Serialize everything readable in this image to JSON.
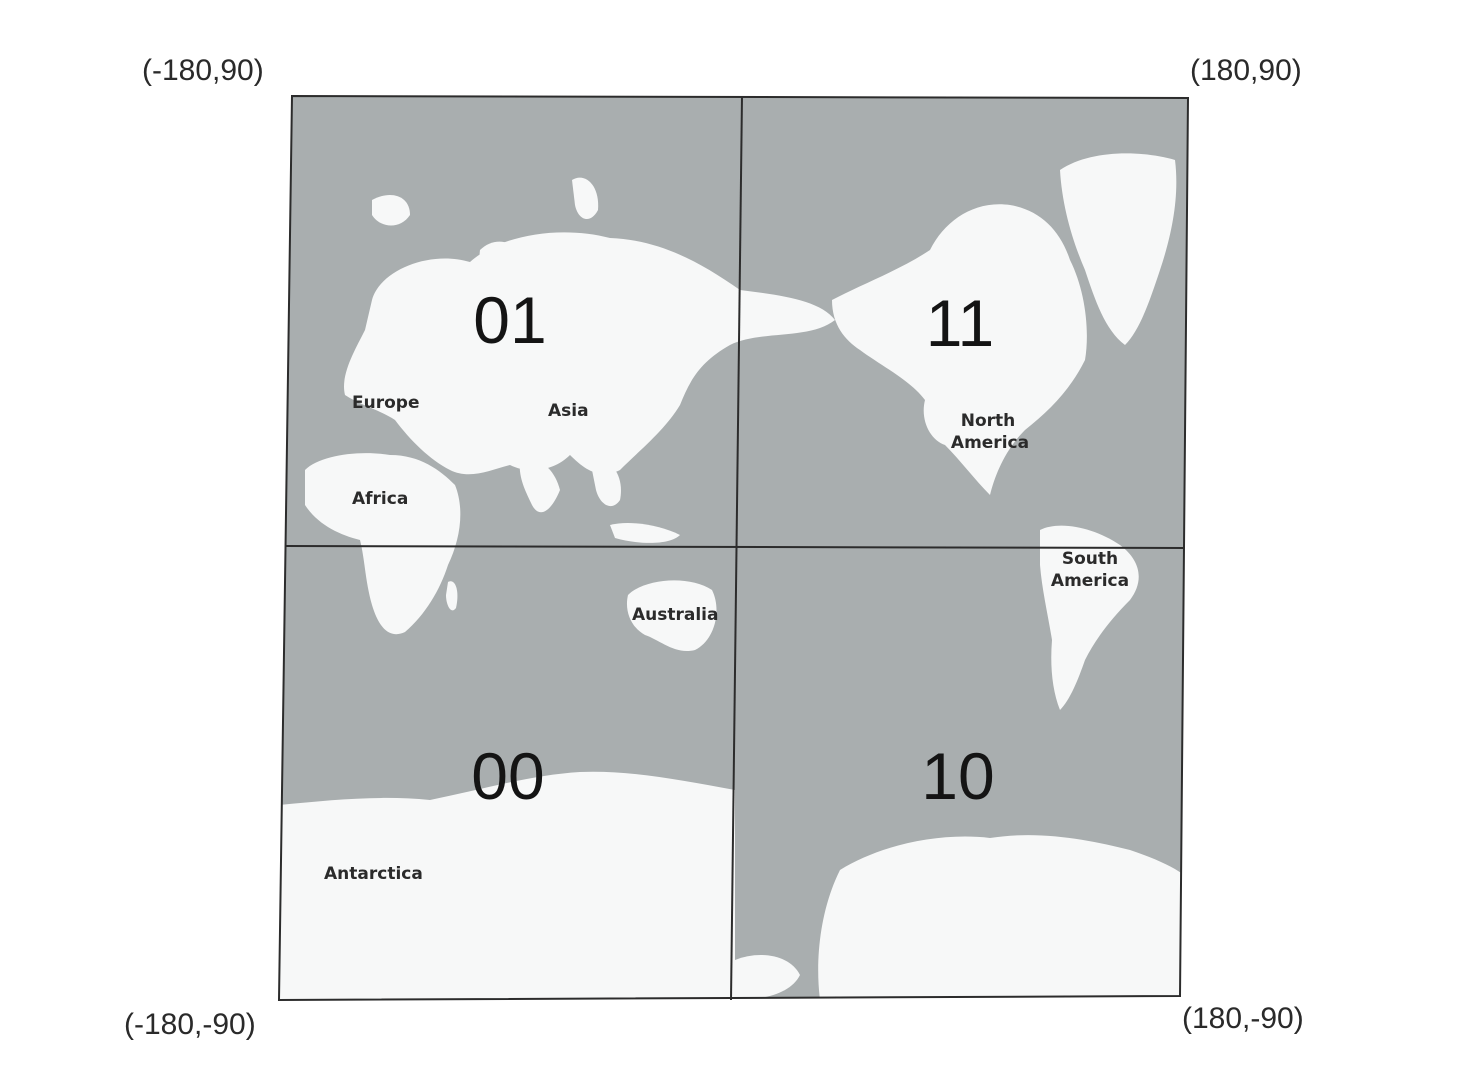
{
  "corners": {
    "top_left": "(-180,90)",
    "top_right": "(180,90)",
    "bottom_left": "(-180,-90)",
    "bottom_right": "(180,-90)"
  },
  "quadrants": {
    "top_left": "01",
    "top_right": "11",
    "bottom_left": "00",
    "bottom_right": "10"
  },
  "places": {
    "europe": "Europe",
    "asia": "Asia",
    "africa": "Africa",
    "north_america": "North America",
    "north_america_line1": "North",
    "north_america_line2": "America",
    "south_america_line1": "South",
    "south_america_line2": "America",
    "australia": "Australia",
    "antarctica": "Antarctica"
  },
  "colors": {
    "ocean": "#a9aeaf",
    "land": "#f7f8f8",
    "grid": "#2c2c2c"
  }
}
